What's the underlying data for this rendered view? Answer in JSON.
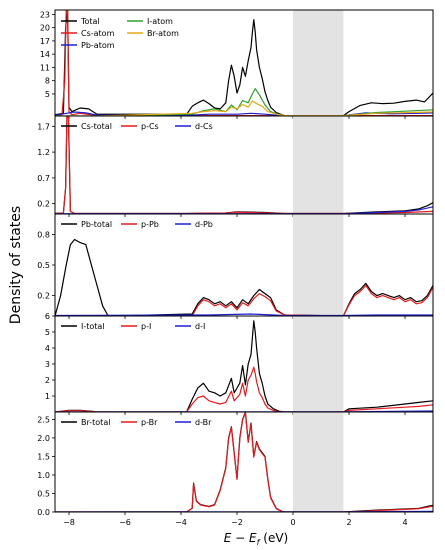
{
  "figure": {
    "ylabel": "Density of states",
    "xlabel": "E − E_f (eV)",
    "gap_shading": {
      "x_from": 0.0,
      "x_to": 1.8,
      "color": "#e3e3e3"
    }
  },
  "chart_data": [
    {
      "type": "line",
      "xlim": [
        -8.5,
        5.0
      ],
      "ylim": [
        0,
        24
      ],
      "yticks": [
        5,
        8,
        11,
        14,
        17,
        20,
        23
      ],
      "legend": "top-left",
      "series": [
        {
          "name": "Total",
          "color": "#000000",
          "x": [
            -8.5,
            -8.2,
            -8.12,
            -8.05,
            -8.0,
            -7.9,
            -7.6,
            -7.3,
            -7.0,
            -3.8,
            -3.6,
            -3.4,
            -3.2,
            -3.0,
            -2.8,
            -2.6,
            -2.4,
            -2.3,
            -2.2,
            -2.1,
            -2.0,
            -1.9,
            -1.8,
            -1.7,
            -1.6,
            -1.5,
            -1.45,
            -1.4,
            -1.35,
            -1.3,
            -1.2,
            -1.1,
            -1.0,
            -0.9,
            -0.8,
            -0.6,
            -0.4,
            -0.3,
            1.8,
            2.0,
            2.4,
            2.8,
            3.2,
            3.6,
            4.0,
            4.4,
            4.7,
            5.0
          ],
          "y": [
            0.3,
            0.6,
            20,
            24,
            2,
            1.0,
            1.8,
            1.6,
            0.4,
            0.4,
            2.2,
            3.0,
            3.6,
            2.8,
            1.8,
            1.6,
            3.0,
            8.0,
            11.5,
            9.0,
            5.2,
            7.0,
            11.0,
            9.0,
            12.5,
            15.5,
            19.0,
            21.8,
            19.0,
            15.0,
            11.0,
            8.5,
            5.5,
            3.5,
            2.0,
            0.8,
            0.3,
            0.1,
            0.1,
            1.0,
            2.4,
            3.0,
            2.8,
            2.9,
            3.3,
            3.6,
            3.2,
            5.2
          ]
        },
        {
          "name": "Cs-atom",
          "color": "#e41a1c",
          "x": [
            -8.5,
            -8.25,
            -8.15,
            -8.1,
            -8.05,
            -8.0,
            -7.9,
            -7.6,
            -7.0,
            5.0
          ],
          "y": [
            0.1,
            0.3,
            8,
            24,
            24,
            1,
            0.3,
            0.6,
            0.1,
            0.1
          ]
        },
        {
          "name": "Pb-atom",
          "color": "#1f1fd0",
          "x": [
            -8.5,
            -8.2,
            -7.8,
            -7.4,
            -7.0,
            -3.6,
            -3.0,
            -2.0,
            -1.5,
            -1.0,
            -0.4,
            1.8,
            2.6,
            3.5,
            4.5,
            5.0
          ],
          "y": [
            0.1,
            0.5,
            0.9,
            0.7,
            0.2,
            0.2,
            0.4,
            0.4,
            0.6,
            0.4,
            0.1,
            0.1,
            0.7,
            0.5,
            0.6,
            0.7
          ]
        },
        {
          "name": "I-atom",
          "color": "#2ca02c",
          "x": [
            -8.5,
            -7.0,
            -3.6,
            -3.2,
            -2.8,
            -2.4,
            -2.2,
            -2.0,
            -1.8,
            -1.6,
            -1.45,
            -1.35,
            -1.2,
            -1.0,
            -0.8,
            -0.5,
            -0.3,
            1.8,
            3.0,
            5.0
          ],
          "y": [
            0.0,
            0.0,
            0.4,
            1.2,
            1.6,
            1.0,
            2.5,
            1.4,
            3.5,
            3.0,
            5.0,
            6.2,
            4.8,
            2.5,
            1.0,
            0.3,
            0.1,
            0.1,
            0.8,
            1.4
          ]
        },
        {
          "name": "Br-atom",
          "color": "#e6a817",
          "x": [
            -8.5,
            -7.0,
            -3.6,
            -3.2,
            -2.8,
            -2.4,
            -2.2,
            -2.0,
            -1.8,
            -1.6,
            -1.45,
            -1.3,
            -1.1,
            -0.9,
            -0.6,
            -0.3,
            1.8,
            3.0,
            5.0
          ],
          "y": [
            0.0,
            0.0,
            0.6,
            1.0,
            1.2,
            1.0,
            2.0,
            1.6,
            2.6,
            2.0,
            3.4,
            2.8,
            2.2,
            1.0,
            0.4,
            0.1,
            0.1,
            0.6,
            0.9
          ]
        }
      ]
    },
    {
      "type": "line",
      "xlim": [
        -8.5,
        5.0
      ],
      "ylim": [
        0,
        1.9
      ],
      "yticks": [
        0.2,
        0.7,
        1.2,
        1.7
      ],
      "legend": "top",
      "series": [
        {
          "name": "Cs-total",
          "color": "#000000",
          "x": [
            -8.5,
            -8.2,
            -8.12,
            -8.07,
            -8.02,
            -7.95,
            -7.8,
            -3.8,
            -2.4,
            -2.0,
            -1.0,
            -0.3,
            1.8,
            3.0,
            4.0,
            4.5,
            4.8,
            5.0
          ],
          "y": [
            0.01,
            0.02,
            0.5,
            1.9,
            1.9,
            0.05,
            0.01,
            0.01,
            0.02,
            0.04,
            0.03,
            0.01,
            0.01,
            0.04,
            0.06,
            0.1,
            0.16,
            0.22
          ]
        },
        {
          "name": "p-Cs",
          "color": "#e41a1c",
          "x": [
            -8.5,
            -8.2,
            -8.12,
            -8.07,
            -8.02,
            -7.95,
            -7.8,
            -3.8,
            -2.4,
            -2.0,
            -1.0,
            -0.3,
            1.8,
            3.0,
            4.0,
            5.0
          ],
          "y": [
            0.01,
            0.02,
            0.5,
            1.9,
            1.9,
            0.05,
            0.01,
            0.01,
            0.02,
            0.035,
            0.02,
            0.01,
            0.01,
            0.02,
            0.03,
            0.05
          ]
        },
        {
          "name": "d-Cs",
          "color": "#1f1fd0",
          "x": [
            -8.5,
            -3.0,
            1.8,
            3.0,
            4.0,
            4.5,
            5.0
          ],
          "y": [
            0.005,
            0.005,
            0.005,
            0.03,
            0.05,
            0.08,
            0.14
          ]
        }
      ]
    },
    {
      "type": "line",
      "xlim": [
        -8.5,
        5.0
      ],
      "ylim": [
        0,
        1.0
      ],
      "yticks": [
        0.2,
        0.5,
        0.8
      ],
      "legend": "top",
      "series": [
        {
          "name": "Pb-total",
          "color": "#000000",
          "x": [
            -8.5,
            -8.3,
            -8.1,
            -7.95,
            -7.8,
            -7.6,
            -7.4,
            -7.2,
            -7.0,
            -6.8,
            -6.6,
            -3.6,
            -3.4,
            -3.2,
            -3.0,
            -2.8,
            -2.6,
            -2.4,
            -2.2,
            -2.0,
            -1.8,
            -1.6,
            -1.4,
            -1.2,
            -1.0,
            -0.8,
            -0.6,
            -0.3,
            1.8,
            2.0,
            2.2,
            2.4,
            2.6,
            2.8,
            3.0,
            3.2,
            3.4,
            3.6,
            3.8,
            4.0,
            4.2,
            4.4,
            4.6,
            4.8,
            5.0
          ],
          "y": [
            0.0,
            0.2,
            0.5,
            0.7,
            0.75,
            0.72,
            0.7,
            0.5,
            0.3,
            0.1,
            0.0,
            0.02,
            0.12,
            0.18,
            0.16,
            0.12,
            0.14,
            0.1,
            0.14,
            0.08,
            0.16,
            0.12,
            0.2,
            0.26,
            0.22,
            0.18,
            0.06,
            0.01,
            0.0,
            0.12,
            0.22,
            0.26,
            0.32,
            0.24,
            0.2,
            0.22,
            0.2,
            0.18,
            0.2,
            0.16,
            0.18,
            0.14,
            0.15,
            0.2,
            0.3
          ]
        },
        {
          "name": "p-Pb",
          "color": "#e41a1c",
          "x": [
            -8.5,
            -3.6,
            -3.4,
            -3.2,
            -3.0,
            -2.8,
            -2.6,
            -2.4,
            -2.2,
            -2.0,
            -1.8,
            -1.6,
            -1.4,
            -1.2,
            -1.0,
            -0.8,
            -0.6,
            -0.3,
            1.8,
            2.0,
            2.2,
            2.4,
            2.6,
            2.8,
            3.0,
            3.2,
            3.4,
            3.6,
            3.8,
            4.0,
            4.2,
            4.4,
            4.6,
            4.8,
            5.0
          ],
          "y": [
            0.0,
            0.0,
            0.1,
            0.16,
            0.14,
            0.1,
            0.12,
            0.08,
            0.12,
            0.06,
            0.13,
            0.1,
            0.17,
            0.22,
            0.19,
            0.15,
            0.05,
            0.01,
            0.0,
            0.11,
            0.2,
            0.24,
            0.3,
            0.22,
            0.18,
            0.2,
            0.18,
            0.16,
            0.18,
            0.14,
            0.16,
            0.12,
            0.13,
            0.18,
            0.28
          ]
        },
        {
          "name": "d-Pb",
          "color": "#1f1fd0",
          "x": [
            -8.5,
            -3.0,
            -1.5,
            -0.3,
            1.8,
            3.0,
            5.0
          ],
          "y": [
            0.005,
            0.01,
            0.02,
            0.005,
            0.005,
            0.01,
            0.01
          ]
        }
      ]
    },
    {
      "type": "line",
      "xlim": [
        -8.5,
        5.0
      ],
      "ylim": [
        0,
        6.0
      ],
      "yticks": [
        1,
        2,
        3,
        4,
        5,
        6
      ],
      "legend": "top",
      "series": [
        {
          "name": "I-total",
          "color": "#000000",
          "x": [
            -8.5,
            -8.0,
            -7.6,
            -7.2,
            -7.0,
            -3.8,
            -3.6,
            -3.4,
            -3.2,
            -3.0,
            -2.8,
            -2.6,
            -2.4,
            -2.2,
            -2.1,
            -2.0,
            -1.9,
            -1.8,
            -1.7,
            -1.6,
            -1.5,
            -1.4,
            -1.35,
            -1.3,
            -1.2,
            -1.1,
            -1.0,
            -0.9,
            -0.7,
            -0.5,
            -0.3,
            1.8,
            2.0,
            3.0,
            4.0,
            4.5,
            5.0
          ],
          "y": [
            0.0,
            0.1,
            0.1,
            0.05,
            0.0,
            0.0,
            0.8,
            1.5,
            1.8,
            1.3,
            1.2,
            1.0,
            1.2,
            2.1,
            1.2,
            1.5,
            1.8,
            2.9,
            1.7,
            3.0,
            3.6,
            5.7,
            5.0,
            4.0,
            2.4,
            1.8,
            1.0,
            0.5,
            0.2,
            0.05,
            0.0,
            0.0,
            0.2,
            0.3,
            0.5,
            0.6,
            0.7
          ]
        },
        {
          "name": "p-I",
          "color": "#e41a1c",
          "x": [
            -8.5,
            -8.0,
            -7.6,
            -7.2,
            -7.0,
            -3.8,
            -3.6,
            -3.4,
            -3.2,
            -3.0,
            -2.8,
            -2.6,
            -2.4,
            -2.2,
            -2.1,
            -2.0,
            -1.9,
            -1.8,
            -1.7,
            -1.6,
            -1.5,
            -1.4,
            -1.35,
            -1.3,
            -1.2,
            -1.1,
            -1.0,
            -0.9,
            -0.7,
            -0.5,
            -0.3,
            1.8,
            2.0,
            3.0,
            4.0,
            4.5,
            5.0
          ],
          "y": [
            0.0,
            0.08,
            0.08,
            0.04,
            0.0,
            0.0,
            0.5,
            0.9,
            1.0,
            0.7,
            0.6,
            0.5,
            0.6,
            1.3,
            0.7,
            0.9,
            1.1,
            1.8,
            1.0,
            2.0,
            2.3,
            2.8,
            2.4,
            1.9,
            1.2,
            0.9,
            0.5,
            0.25,
            0.1,
            0.02,
            0.0,
            0.0,
            0.1,
            0.2,
            0.3,
            0.35,
            0.45
          ]
        },
        {
          "name": "d-I",
          "color": "#1f1fd0",
          "x": [
            -8.5,
            -3.0,
            1.8,
            3.0,
            5.0
          ],
          "y": [
            0.0,
            0.01,
            0.01,
            0.03,
            0.06
          ]
        }
      ]
    },
    {
      "type": "line",
      "xlim": [
        -8.5,
        5.0
      ],
      "ylim": [
        0,
        2.7
      ],
      "yticks": [
        0.0,
        0.5,
        1.0,
        1.5,
        2.0,
        2.5
      ],
      "legend": "top",
      "series": [
        {
          "name": "Br-total",
          "color": "#000000",
          "x": [
            -8.5,
            -3.8,
            -3.6,
            -3.55,
            -3.45,
            -3.3,
            -3.0,
            -2.8,
            -2.6,
            -2.4,
            -2.3,
            -2.2,
            -2.1,
            -2.0,
            -1.9,
            -1.8,
            -1.7,
            -1.6,
            -1.5,
            -1.4,
            -1.3,
            -1.2,
            -1.1,
            -1.0,
            -0.9,
            -0.8,
            -0.6,
            -0.4,
            -0.3,
            1.8,
            2.5,
            3.0,
            4.0,
            4.5,
            4.8,
            5.0
          ],
          "y": [
            0.0,
            0.0,
            0.1,
            0.78,
            0.3,
            0.2,
            0.15,
            0.2,
            0.6,
            1.2,
            2.0,
            2.3,
            1.6,
            0.9,
            2.0,
            2.5,
            2.7,
            1.9,
            2.4,
            1.5,
            1.9,
            1.7,
            1.6,
            1.5,
            0.9,
            0.4,
            0.1,
            0.02,
            0.0,
            0.0,
            0.03,
            0.05,
            0.08,
            0.1,
            0.15,
            0.18
          ]
        },
        {
          "name": "p-Br",
          "color": "#e41a1c",
          "x": [
            -8.5,
            -3.8,
            -3.6,
            -3.55,
            -3.45,
            -3.3,
            -3.0,
            -2.8,
            -2.6,
            -2.4,
            -2.3,
            -2.2,
            -2.1,
            -2.0,
            -1.9,
            -1.8,
            -1.7,
            -1.6,
            -1.5,
            -1.4,
            -1.3,
            -1.2,
            -1.1,
            -1.0,
            -0.9,
            -0.8,
            -0.6,
            -0.4,
            -0.3,
            1.8,
            2.5,
            3.0,
            4.0,
            4.5,
            4.8,
            5.0
          ],
          "y": [
            0.0,
            0.0,
            0.1,
            0.76,
            0.29,
            0.19,
            0.14,
            0.19,
            0.58,
            1.18,
            1.98,
            2.28,
            1.58,
            0.88,
            1.98,
            2.48,
            2.68,
            1.88,
            2.38,
            1.48,
            1.88,
            1.68,
            1.58,
            1.48,
            0.88,
            0.38,
            0.09,
            0.02,
            0.0,
            0.0,
            0.02,
            0.04,
            0.07,
            0.09,
            0.13,
            0.16
          ]
        },
        {
          "name": "d-Br",
          "color": "#1f1fd0",
          "x": [
            -8.5,
            -3.0,
            1.8,
            3.0,
            5.0
          ],
          "y": [
            0.0,
            0.005,
            0.005,
            0.01,
            0.02
          ]
        }
      ]
    }
  ],
  "xaxis": {
    "ticks": [
      -8,
      -6,
      -4,
      -2,
      0,
      2,
      4
    ],
    "tick_labels": [
      "−8",
      "−6",
      "−4",
      "−2",
      "0",
      "2",
      "4"
    ]
  }
}
